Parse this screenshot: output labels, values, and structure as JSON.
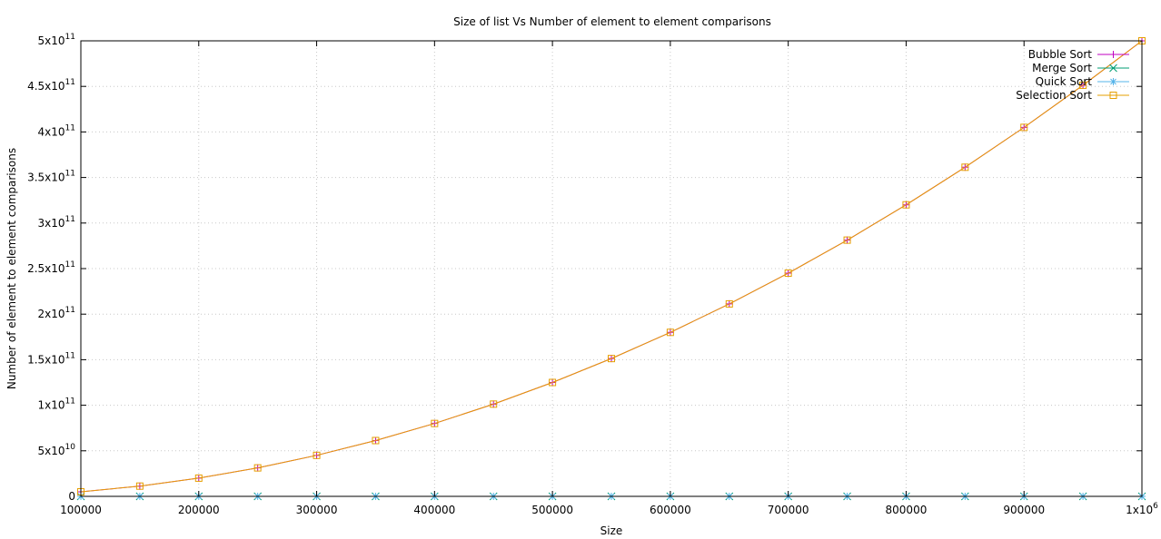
{
  "chart_data": {
    "type": "line",
    "title": "Size of list Vs Number of element to element comparisons",
    "xlabel": "Size",
    "ylabel": "Number of element to element comparisons",
    "xlim": [
      100000,
      1000000
    ],
    "ylim": [
      0,
      500000000000
    ],
    "grid": true,
    "legend_position": "top-right",
    "x_ticks": [
      {
        "value": 100000,
        "label": "100000"
      },
      {
        "value": 200000,
        "label": "200000"
      },
      {
        "value": 300000,
        "label": "300000"
      },
      {
        "value": 400000,
        "label": "400000"
      },
      {
        "value": 500000,
        "label": "500000"
      },
      {
        "value": 600000,
        "label": "600000"
      },
      {
        "value": 700000,
        "label": "700000"
      },
      {
        "value": 800000,
        "label": "800000"
      },
      {
        "value": 900000,
        "label": "900000"
      },
      {
        "value": 1000000,
        "base": "1x10",
        "exp": "6"
      }
    ],
    "y_ticks": [
      {
        "value": 0,
        "base": "0",
        "exp": ""
      },
      {
        "value": 50000000000,
        "base": "5x10",
        "exp": "10"
      },
      {
        "value": 100000000000,
        "base": "1x10",
        "exp": "11"
      },
      {
        "value": 150000000000,
        "base": "1.5x10",
        "exp": "11"
      },
      {
        "value": 200000000000,
        "base": "2x10",
        "exp": "11"
      },
      {
        "value": 250000000000,
        "base": "2.5x10",
        "exp": "11"
      },
      {
        "value": 300000000000,
        "base": "3x10",
        "exp": "11"
      },
      {
        "value": 350000000000,
        "base": "3.5x10",
        "exp": "11"
      },
      {
        "value": 400000000000,
        "base": "4x10",
        "exp": "11"
      },
      {
        "value": 450000000000,
        "base": "4.5x10",
        "exp": "11"
      },
      {
        "value": 500000000000,
        "base": "5x10",
        "exp": "11"
      }
    ],
    "x": [
      100000,
      150000,
      200000,
      250000,
      300000,
      350000,
      400000,
      450000,
      500000,
      550000,
      600000,
      650000,
      700000,
      750000,
      800000,
      850000,
      900000,
      950000,
      1000000
    ],
    "series": [
      {
        "name": "Bubble Sort",
        "color": "#c000c0",
        "marker": "plus",
        "values": [
          5000000000,
          11250000000,
          20000000000,
          31250000000,
          45000000000,
          61250000000,
          80000000000,
          101250000000,
          125000000000,
          151250000000,
          180000000000,
          211250000000,
          245000000000,
          281250000000,
          320000000000,
          361250000000,
          405000000000,
          451250000000,
          500000000000
        ]
      },
      {
        "name": "Merge Sort",
        "color": "#009e73",
        "marker": "cross",
        "values": [
          1536000,
          2400000,
          3272000,
          4180000,
          5094000,
          6020000,
          6944000,
          7876000,
          8837000,
          9774000,
          10788000,
          11733000,
          12688000,
          13646000,
          14688000,
          15655000,
          16651000,
          17591000,
          18674000
        ]
      },
      {
        "name": "Quick Sort",
        "color": "#56b4e9",
        "marker": "star",
        "values": [
          2000000,
          3100000,
          4300000,
          5400000,
          6600000,
          7800000,
          9000000,
          10200000,
          11400000,
          12600000,
          13900000,
          15100000,
          16300000,
          17600000,
          18900000,
          20100000,
          21400000,
          22700000,
          24000000
        ]
      },
      {
        "name": "Selection Sort",
        "color": "#e69f00",
        "marker": "box",
        "values": [
          5000000000,
          11250000000,
          20000000000,
          31250000000,
          45000000000,
          61250000000,
          80000000000,
          101250000000,
          125000000000,
          151250000000,
          180000000000,
          211250000000,
          245000000000,
          281250000000,
          320000000000,
          361250000000,
          405000000000,
          451250000000,
          500000000000
        ]
      }
    ]
  }
}
